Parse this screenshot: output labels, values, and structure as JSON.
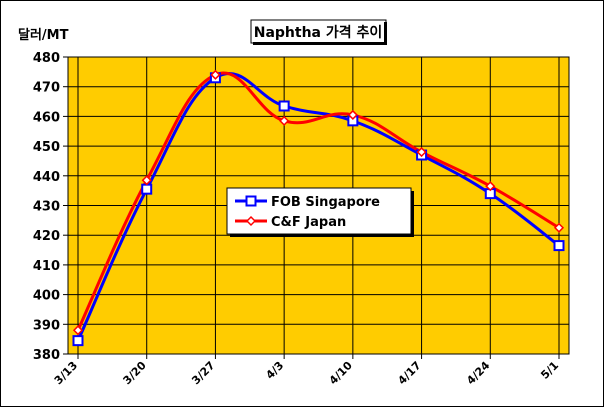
{
  "chart_data": {
    "type": "line",
    "title": "Naphtha 가격 추이",
    "ylabel": "달러/MT",
    "xlabel": "",
    "categories": [
      "3/13",
      "3/20",
      "3/27",
      "4/3",
      "4/10",
      "4/17",
      "4/24",
      "5/1"
    ],
    "ylim": [
      380,
      480
    ],
    "yticks": [
      380,
      390,
      400,
      410,
      420,
      430,
      440,
      450,
      460,
      470,
      480
    ],
    "grid": true,
    "legend_position": "center-left",
    "series": [
      {
        "name": "FOB Singapore",
        "values": [
          384.5,
          435.5,
          473,
          463.5,
          458.5,
          447,
          434,
          416.5
        ],
        "color": "#0000ff",
        "marker": "square"
      },
      {
        "name": "C&F Japan",
        "values": [
          388,
          438.5,
          474,
          458.5,
          460.5,
          448,
          436.5,
          422.5
        ],
        "color": "#ff0000",
        "marker": "diamond"
      }
    ],
    "plot_background": "#ffcc00",
    "colors": {
      "grid": "#000000",
      "border": "#000000"
    }
  }
}
